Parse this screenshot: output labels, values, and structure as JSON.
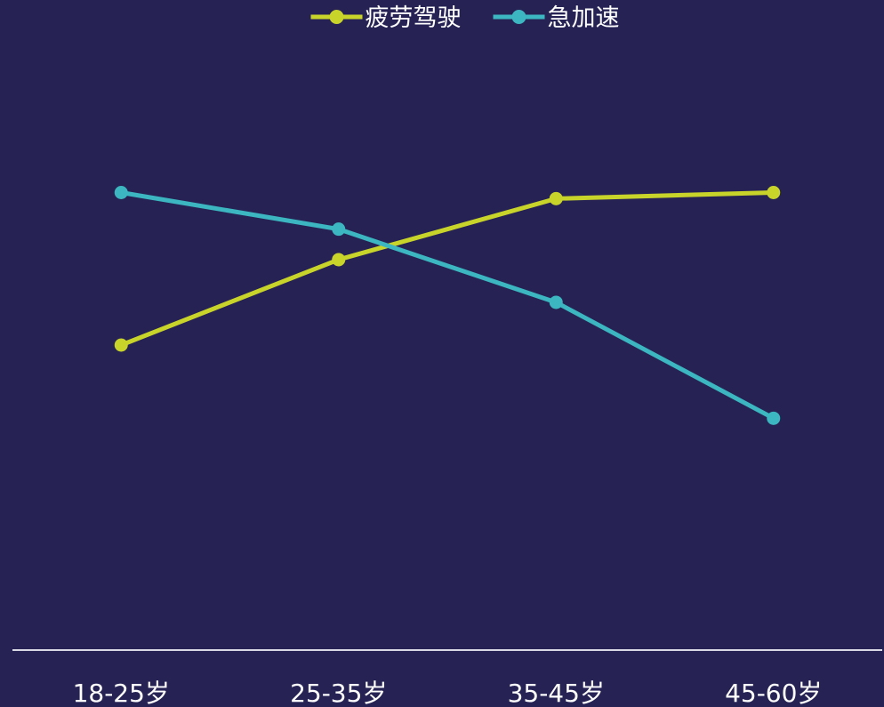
{
  "chart_data": {
    "type": "line",
    "categories": [
      "18-25岁",
      "25-35岁",
      "35-45岁",
      "45-60岁"
    ],
    "ylim": [
      0,
      100
    ],
    "grid": false,
    "legend_position": "top-center",
    "title": "",
    "xlabel": "",
    "ylabel": "",
    "series": [
      {
        "name": "疲劳驾驶",
        "color": "#c9d42a",
        "values": [
          50,
          64,
          74,
          75
        ]
      },
      {
        "name": "急加速",
        "color": "#3cb6c0",
        "values": [
          75,
          69,
          57,
          38
        ]
      }
    ],
    "axis_color": "#d9d9e6",
    "background": "#262354"
  }
}
